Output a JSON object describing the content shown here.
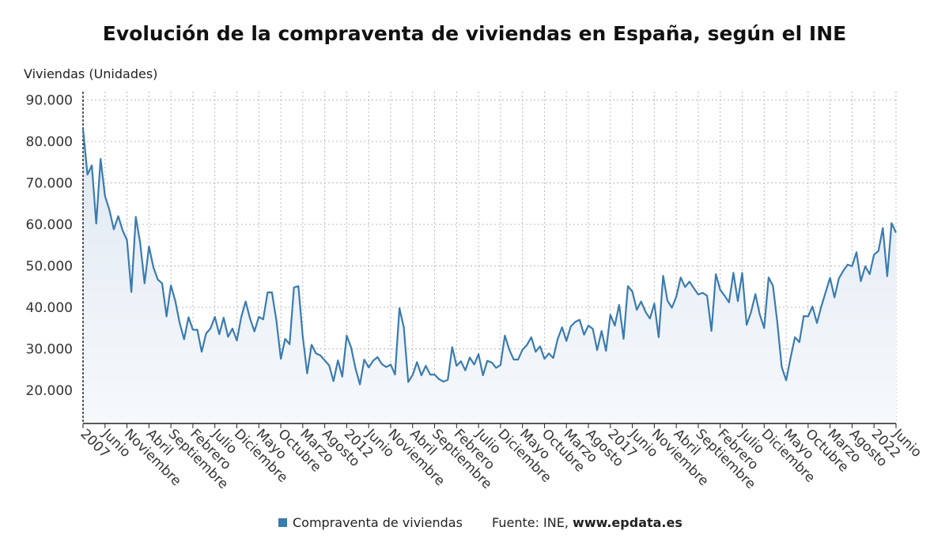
{
  "title": "Evolución de la compraventa de viviendas en España, según el INE",
  "source": {
    "label": "Fuente: INE,",
    "site": "www.epdata.es"
  },
  "colors": {
    "line": "#3a7bb0",
    "area_top": "#dfe8f2",
    "area_bottom": "#f6f9fc",
    "grid": "#b8b8b8",
    "axis_text": "#333333"
  },
  "chart_data": {
    "type": "area",
    "title": "Evolución de la compraventa de viviendas en España, según el INE",
    "ylabel": "Viviendas (Unidades)",
    "xlabel": "",
    "ylim": [
      12000,
      92000
    ],
    "x_range": [
      "2007-01",
      "2022-06"
    ],
    "y_ticks": [
      {
        "value": 20000,
        "label": "20.000"
      },
      {
        "value": 30000,
        "label": "30.000"
      },
      {
        "value": 40000,
        "label": "40.000"
      },
      {
        "value": 50000,
        "label": "50.000"
      },
      {
        "value": 60000,
        "label": "60.000"
      },
      {
        "value": 70000,
        "label": "70.000"
      },
      {
        "value": 80000,
        "label": "80.000"
      },
      {
        "value": 90000,
        "label": "90.000"
      }
    ],
    "x_ticks": [
      {
        "x": "2007-01",
        "label": "2007"
      },
      {
        "x": "2007-06",
        "label": "Junio"
      },
      {
        "x": "2007-11",
        "label": "Noviembre"
      },
      {
        "x": "2008-04",
        "label": "Abril"
      },
      {
        "x": "2008-09",
        "label": "Septiembre"
      },
      {
        "x": "2009-02",
        "label": "Febrero"
      },
      {
        "x": "2009-07",
        "label": "Julio"
      },
      {
        "x": "2009-12",
        "label": "Diciembre"
      },
      {
        "x": "2010-05",
        "label": "Mayo"
      },
      {
        "x": "2010-10",
        "label": "Octubre"
      },
      {
        "x": "2011-03",
        "label": "Marzo"
      },
      {
        "x": "2011-08",
        "label": "Agosto"
      },
      {
        "x": "2012-01",
        "label": "2012"
      },
      {
        "x": "2012-06",
        "label": "Junio"
      },
      {
        "x": "2012-11",
        "label": "Noviembre"
      },
      {
        "x": "2013-04",
        "label": "Abril"
      },
      {
        "x": "2013-09",
        "label": "Septiembre"
      },
      {
        "x": "2014-02",
        "label": "Febrero"
      },
      {
        "x": "2014-07",
        "label": "Julio"
      },
      {
        "x": "2014-12",
        "label": "Diciembre"
      },
      {
        "x": "2015-05",
        "label": "Mayo"
      },
      {
        "x": "2015-10",
        "label": "Octubre"
      },
      {
        "x": "2016-03",
        "label": "Marzo"
      },
      {
        "x": "2016-08",
        "label": "Agosto"
      },
      {
        "x": "2017-01",
        "label": "2017"
      },
      {
        "x": "2017-06",
        "label": "Junio"
      },
      {
        "x": "2017-11",
        "label": "Noviembre"
      },
      {
        "x": "2018-04",
        "label": "Abril"
      },
      {
        "x": "2018-09",
        "label": "Septiembre"
      },
      {
        "x": "2019-02",
        "label": "Febrero"
      },
      {
        "x": "2019-07",
        "label": "Julio"
      },
      {
        "x": "2019-12",
        "label": "Diciembre"
      },
      {
        "x": "2020-05",
        "label": "Mayo"
      },
      {
        "x": "2020-10",
        "label": "Octubre"
      },
      {
        "x": "2021-03",
        "label": "Marzo"
      },
      {
        "x": "2021-08",
        "label": "Agosto"
      },
      {
        "x": "2022-01",
        "label": "2022"
      },
      {
        "x": "2022-06",
        "label": "Junio"
      }
    ],
    "series": [
      {
        "name": "Compraventa de viviendas",
        "color": "#3a7bb0",
        "values": [
          83000,
          72000,
          74200,
          60200,
          75800,
          66800,
          63500,
          58800,
          62000,
          58600,
          56200,
          43700,
          61800,
          55600,
          45800,
          54700,
          49700,
          46700,
          45800,
          37800,
          45300,
          41500,
          36200,
          32300,
          37600,
          34600,
          34600,
          29300,
          33700,
          34900,
          37700,
          33500,
          37500,
          32900,
          34900,
          32000,
          37600,
          41400,
          37300,
          34200,
          37700,
          37100,
          43600,
          43600,
          36800,
          27600,
          32400,
          31100,
          44800,
          45100,
          33000,
          24100,
          31000,
          28900,
          28400,
          27200,
          26000,
          22200,
          27200,
          23300,
          33200,
          30300,
          25300,
          21400,
          27400,
          25500,
          27100,
          28000,
          26300,
          25600,
          26200,
          23800,
          39800,
          35200,
          22000,
          23700,
          26800,
          23600,
          25900,
          23800,
          23800,
          22700,
          22100,
          22500,
          30400,
          25900,
          27000,
          24800,
          27900,
          26200,
          28700,
          23600,
          27100,
          26700,
          25400,
          26100,
          33200,
          29800,
          27400,
          27400,
          29800,
          30900,
          32800,
          29300,
          30600,
          27600,
          28900,
          27800,
          32300,
          35200,
          31900,
          35400,
          36500,
          37000,
          33400,
          35600,
          34800,
          29700,
          34300,
          29500,
          38200,
          35600,
          40600,
          32400,
          45100,
          43800,
          39400,
          41400,
          38900,
          37300,
          40900,
          32800,
          47600,
          41600,
          39900,
          42600,
          47200,
          44900,
          46200,
          44600,
          43100,
          43500,
          42800,
          34300,
          48000,
          44200,
          42800,
          41200,
          48300,
          41500,
          48300,
          35800,
          38800,
          43200,
          38300,
          35000,
          47200,
          45200,
          36200,
          25600,
          22400,
          27800,
          32800,
          31600,
          37900,
          37800,
          40200,
          36200,
          40200,
          43700,
          47100,
          42400,
          47000,
          48800,
          50300,
          49900,
          53300,
          46300,
          49900,
          48000,
          52700,
          53600,
          59100,
          47500,
          60300,
          58000
        ]
      }
    ],
    "grid": true,
    "legend_position": "bottom"
  }
}
